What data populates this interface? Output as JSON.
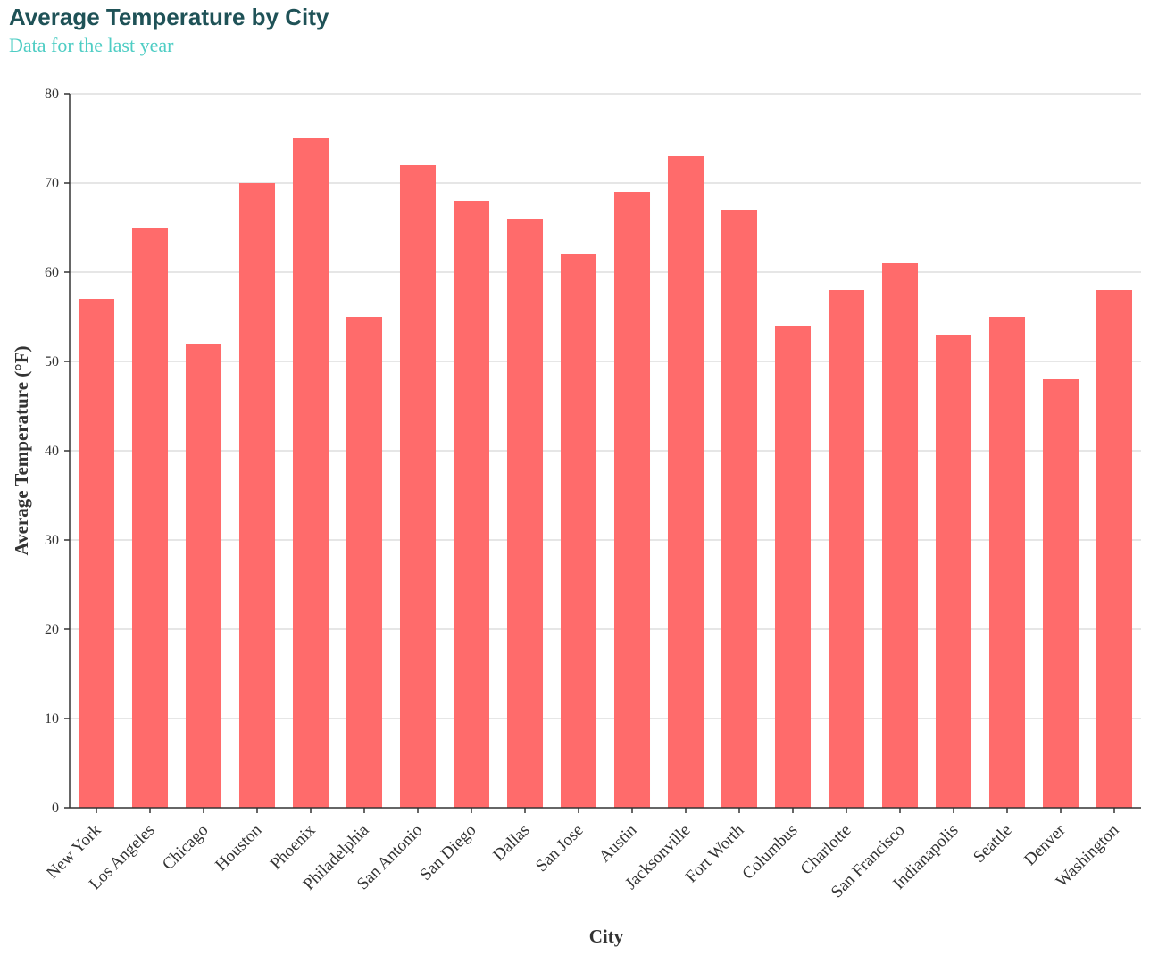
{
  "title": "Average Temperature by City",
  "subtitle": "Data for the last year",
  "colors": {
    "bar": "#ff6b6b",
    "title": "#1f5257",
    "subtitle": "#4ecdc4",
    "grid": "#dddddd",
    "axis": "#333333"
  },
  "chart_data": {
    "type": "bar",
    "title": "Average Temperature by City",
    "subtitle": "Data for the last year",
    "xlabel": "City",
    "ylabel": "Average Temperature (°F)",
    "ylim": [
      0,
      80
    ],
    "yticks": [
      0,
      10,
      20,
      30,
      40,
      50,
      60,
      70,
      80
    ],
    "grid": true,
    "categories": [
      "New York",
      "Los Angeles",
      "Chicago",
      "Houston",
      "Phoenix",
      "Philadelphia",
      "San Antonio",
      "San Diego",
      "Dallas",
      "San Jose",
      "Austin",
      "Jacksonville",
      "Fort Worth",
      "Columbus",
      "Charlotte",
      "San Francisco",
      "Indianapolis",
      "Seattle",
      "Denver",
      "Washington"
    ],
    "values": [
      57,
      65,
      52,
      70,
      75,
      55,
      72,
      68,
      66,
      62,
      69,
      73,
      67,
      54,
      58,
      61,
      53,
      55,
      48,
      58
    ]
  }
}
